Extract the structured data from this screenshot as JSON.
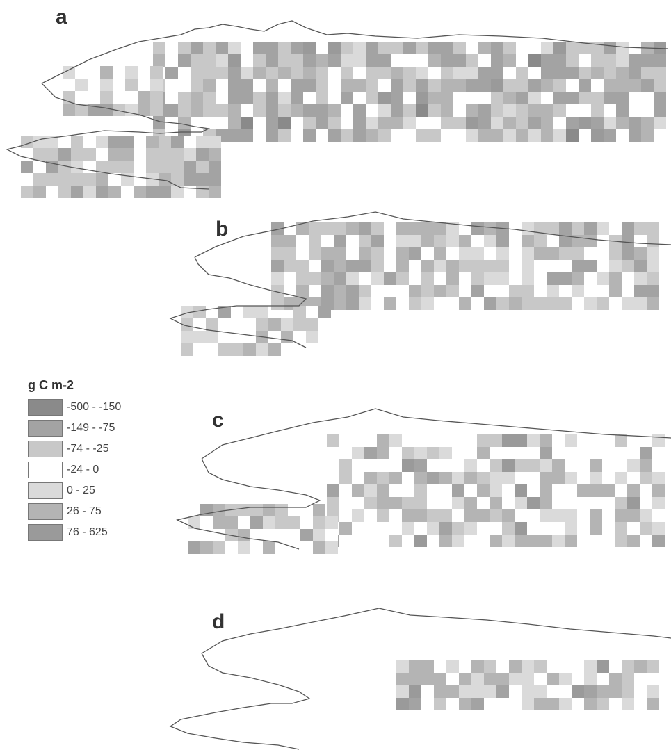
{
  "panels": [
    {
      "label": "a",
      "id": "a"
    },
    {
      "label": "b",
      "id": "b"
    },
    {
      "label": "c",
      "id": "c"
    },
    {
      "label": "d",
      "id": "d"
    }
  ],
  "legend": {
    "title": "g C m-2",
    "classes": [
      {
        "label": "-500 - -150",
        "color": "#8a8a8a"
      },
      {
        "label": "-149 - -75",
        "color": "#a3a3a3"
      },
      {
        "label": "-74 - -25",
        "color": "#c8c8c8"
      },
      {
        "label": "-24 - 0",
        "color": "#ffffff"
      },
      {
        "label": "0 - 25",
        "color": "#dadada"
      },
      {
        "label": "26 - 75",
        "color": "#b4b4b4"
      },
      {
        "label": "76 - 625",
        "color": "#9a9a9a"
      }
    ]
  }
}
